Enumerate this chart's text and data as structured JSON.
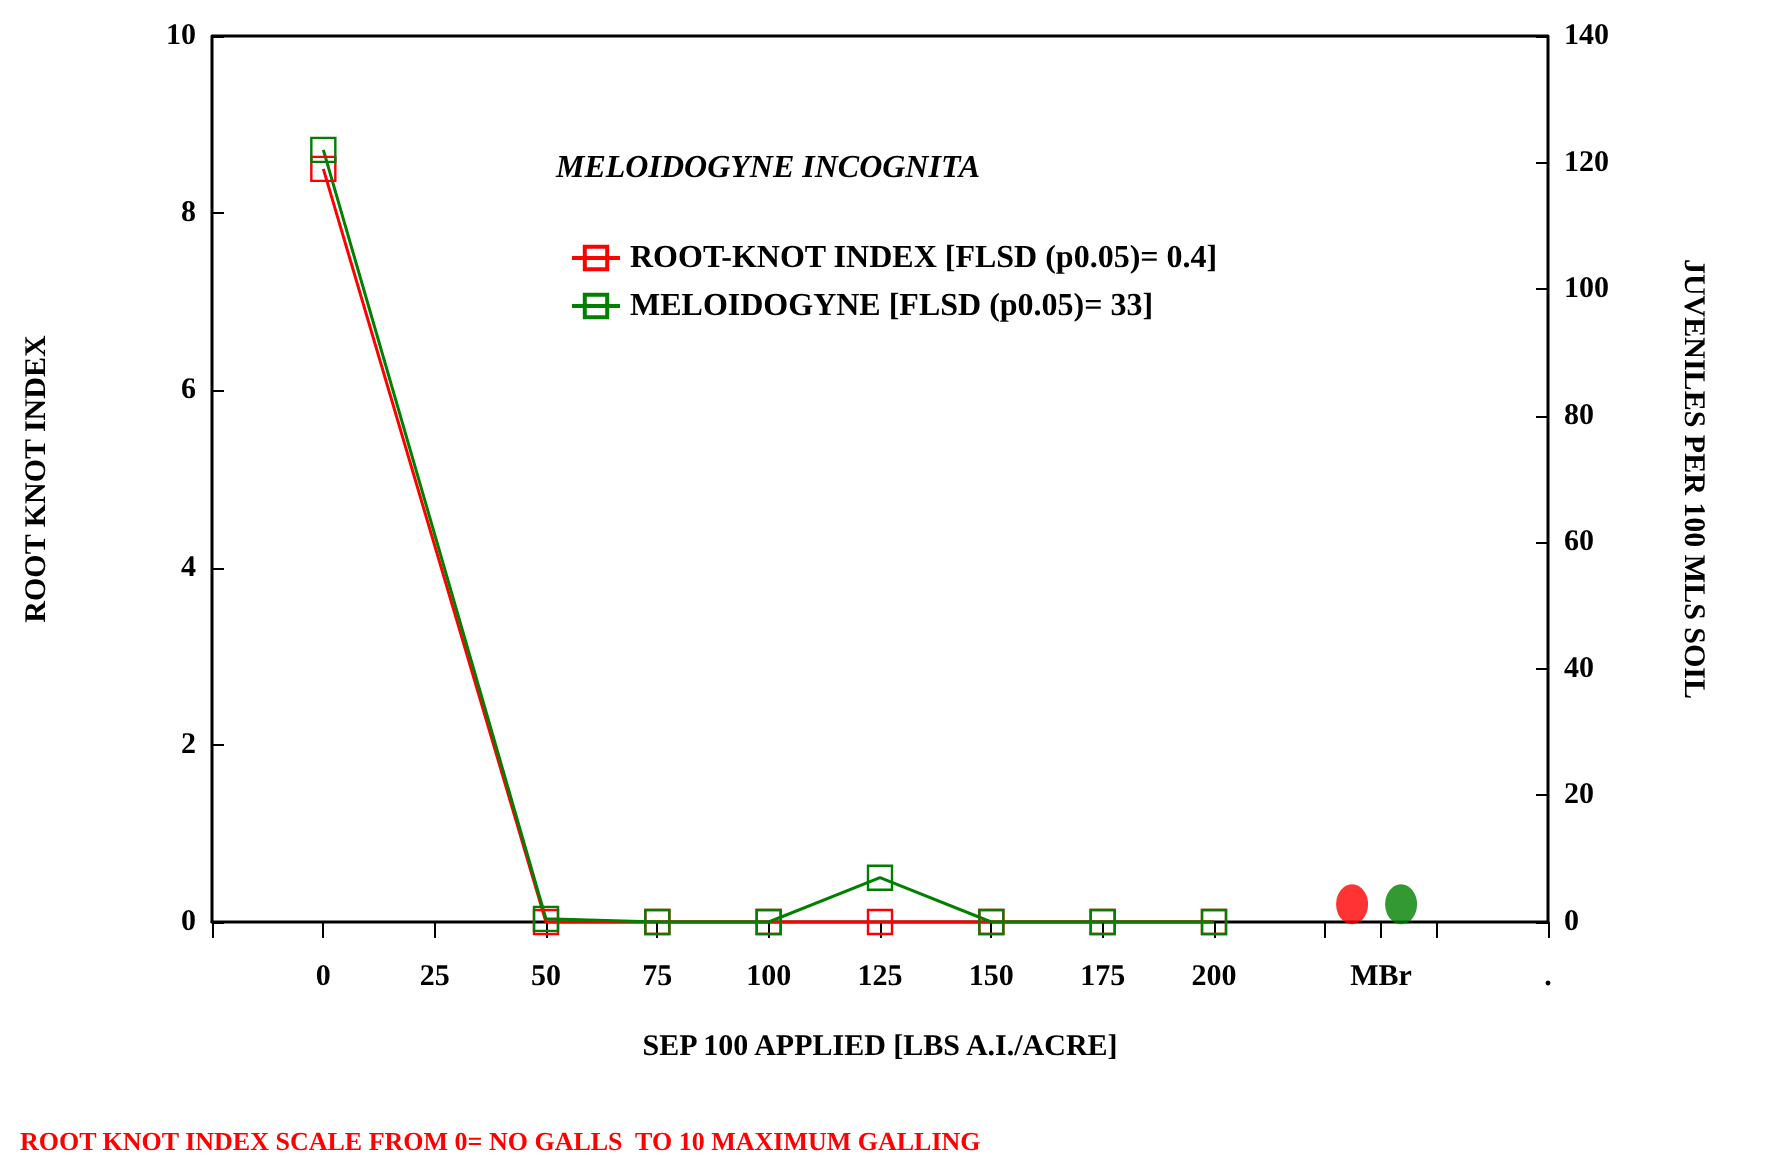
{
  "chart_data": {
    "type": "line",
    "xlabel": "SEP 100 APPLIED [LBS A.I./ACRE]",
    "ylabel": "ROOT KNOT INDEX",
    "y2label": "JUVENILES PER 100 MLS SOIL",
    "legend_title": "MELOIDOGYNE INCOGNITA",
    "annotations": [
      "ROOT KNOT INDEX SCALE FROM 0= NO GALLS  TO 10 MAXIMUM GALLING"
    ],
    "xlim": [
      -25,
      275
    ],
    "xticks": [
      {
        "value": -25,
        "label": null
      },
      0,
      25,
      50,
      75,
      100,
      125,
      150,
      175,
      200,
      {
        "value": 225,
        "label": null
      },
      {
        "value": 237.5,
        "label": "MBr"
      },
      {
        "value": 250,
        "label": null
      },
      {
        "value": 275,
        "label": "."
      }
    ],
    "ylim": [
      0,
      10
    ],
    "yticks": [
      0,
      2,
      4,
      6,
      8,
      10
    ],
    "y2lim": [
      0,
      140
    ],
    "y2ticks": [
      0,
      20,
      40,
      60,
      80,
      100,
      120,
      140
    ],
    "marker": "square",
    "grid": false,
    "legend": "top",
    "series": [
      {
        "name": "ROOT-KNOT INDEX [FLSD (p0.05)= 0.4]",
        "color": "#ff0000",
        "x": [
          0,
          50,
          75,
          100,
          125,
          150,
          175,
          200
        ],
        "values": [
          8.5,
          0,
          0,
          0,
          0,
          0,
          0,
          0
        ]
      },
      {
        "name": "MELOIDOGYNE [FLSD (p0.05)= 33]",
        "color": "#008000",
        "axis": "y2",
        "x": [
          0,
          50,
          75,
          100,
          125,
          150,
          175,
          200
        ],
        "values": [
          122,
          0.5,
          0,
          0,
          7,
          0,
          0,
          0
        ]
      },
      {
        "type": "scatter",
        "marker": "circle",
        "color": "#ff0000",
        "x": [
          231
        ],
        "values": [
          0.2
        ]
      },
      {
        "type": "scatter",
        "marker": "circle",
        "color": "#008000",
        "axis": "y2",
        "x": [
          242
        ],
        "values": [
          2.8
        ]
      }
    ]
  }
}
